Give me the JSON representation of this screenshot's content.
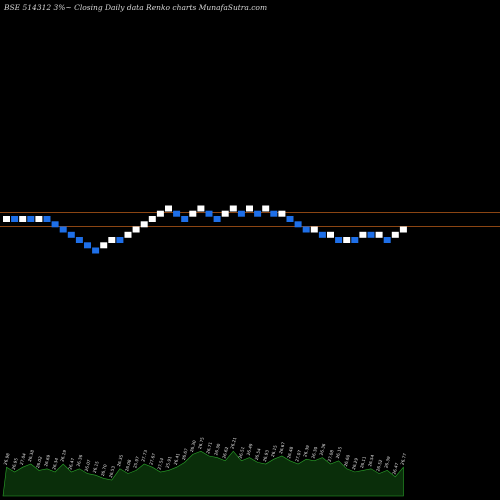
{
  "chart_data": {
    "type": "renko",
    "title": "BSE 514312  3%~  Closing Daily data  Renko  charts MunafaSutra.com",
    "reference_lines": [
      {
        "level": 22.8,
        "color": "#8b4513"
      },
      {
        "level": 21.2,
        "color": "#8b4513"
      }
    ],
    "bricks": [
      {
        "value": 22.0,
        "dir": "up"
      },
      {
        "value": 22.0,
        "dir": "down"
      },
      {
        "value": 22.0,
        "dir": "up"
      },
      {
        "value": 22.0,
        "dir": "down"
      },
      {
        "value": 22.0,
        "dir": "up"
      },
      {
        "value": 22.0,
        "dir": "down"
      },
      {
        "value": 21.4,
        "dir": "down"
      },
      {
        "value": 20.8,
        "dir": "down"
      },
      {
        "value": 20.2,
        "dir": "down"
      },
      {
        "value": 19.6,
        "dir": "down"
      },
      {
        "value": 19.0,
        "dir": "down"
      },
      {
        "value": 18.4,
        "dir": "down"
      },
      {
        "value": 19.0,
        "dir": "up"
      },
      {
        "value": 19.6,
        "dir": "up"
      },
      {
        "value": 19.6,
        "dir": "down"
      },
      {
        "value": 20.2,
        "dir": "up"
      },
      {
        "value": 20.8,
        "dir": "up"
      },
      {
        "value": 21.4,
        "dir": "up"
      },
      {
        "value": 22.0,
        "dir": "up"
      },
      {
        "value": 22.6,
        "dir": "up"
      },
      {
        "value": 23.2,
        "dir": "up"
      },
      {
        "value": 22.6,
        "dir": "down"
      },
      {
        "value": 22.0,
        "dir": "down"
      },
      {
        "value": 22.6,
        "dir": "up"
      },
      {
        "value": 23.2,
        "dir": "up"
      },
      {
        "value": 22.6,
        "dir": "down"
      },
      {
        "value": 22.0,
        "dir": "down"
      },
      {
        "value": 22.6,
        "dir": "up"
      },
      {
        "value": 23.2,
        "dir": "up"
      },
      {
        "value": 22.6,
        "dir": "down"
      },
      {
        "value": 23.2,
        "dir": "up"
      },
      {
        "value": 22.6,
        "dir": "down"
      },
      {
        "value": 23.2,
        "dir": "up"
      },
      {
        "value": 22.6,
        "dir": "down"
      },
      {
        "value": 22.6,
        "dir": "up"
      },
      {
        "value": 22.0,
        "dir": "down"
      },
      {
        "value": 21.4,
        "dir": "down"
      },
      {
        "value": 20.8,
        "dir": "down"
      },
      {
        "value": 20.8,
        "dir": "up"
      },
      {
        "value": 20.2,
        "dir": "down"
      },
      {
        "value": 20.2,
        "dir": "up"
      },
      {
        "value": 19.6,
        "dir": "down"
      },
      {
        "value": 19.6,
        "dir": "up"
      },
      {
        "value": 19.6,
        "dir": "down"
      },
      {
        "value": 20.2,
        "dir": "up"
      },
      {
        "value": 20.2,
        "dir": "down"
      },
      {
        "value": 20.2,
        "dir": "up"
      },
      {
        "value": 19.6,
        "dir": "down"
      },
      {
        "value": 20.2,
        "dir": "up"
      },
      {
        "value": 20.8,
        "dir": "up"
      }
    ],
    "volume_labels": [
      "26.98",
      "26.95",
      "27.04",
      "26.38",
      "26.02",
      "26.69",
      "26.34",
      "26.19",
      "26.47",
      "26.36",
      "26.07",
      "26.15",
      "26.70",
      "26.53",
      "26.35",
      "26.08",
      "25.97",
      "27.73",
      "27.67",
      "27.54",
      "25.91",
      "26.41",
      "26.67",
      "26.30",
      "26.75",
      "26.71",
      "26.30",
      "26.62",
      "26.21",
      "26.51",
      "26.49",
      "26.54",
      "26.93",
      "26.15",
      "26.67",
      "26.48",
      "27.07",
      "26.39",
      "26.30",
      "26.36",
      "27.08",
      "26.15",
      "26.60",
      "26.29",
      "26.11",
      "26.54",
      "26.52",
      "26.39",
      "26.47",
      "26.77"
    ],
    "volume_values": [
      18,
      15,
      18,
      20,
      16,
      17,
      15,
      20,
      15,
      17,
      14,
      13,
      11,
      10,
      17,
      14,
      16,
      20,
      18,
      15,
      16,
      18,
      21,
      26,
      28,
      25,
      24,
      22,
      28,
      22,
      24,
      21,
      20,
      23,
      25,
      22,
      20,
      23,
      22,
      24,
      20,
      22,
      17,
      15,
      16,
      17,
      14,
      16,
      12,
      18
    ]
  },
  "colors": {
    "background": "#000000",
    "up_brick": "#ffffff",
    "down_brick": "#1e6fe8",
    "reference_line": "#8b4513",
    "volume_fill": "#0a2e0a",
    "volume_stroke": "#2aa62a",
    "label": "#e0e0e0"
  }
}
